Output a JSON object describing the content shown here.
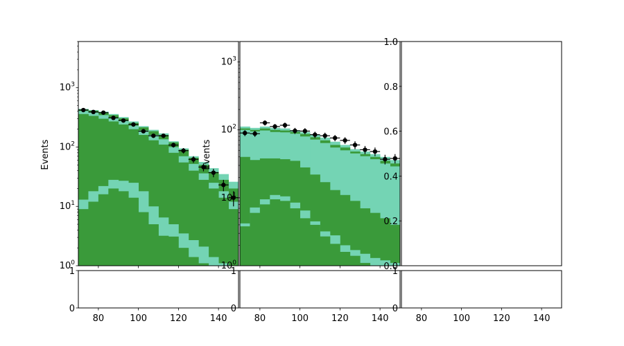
{
  "chart_data": [
    {
      "type": "bar",
      "panel": "left-top",
      "stacked_histogram": true,
      "yscale": "log",
      "xlim": [
        70,
        150
      ],
      "ylim": [
        1,
        6000
      ],
      "ylabel": "Events",
      "x_ticks": [
        "80",
        "100",
        "120",
        "140"
      ],
      "y_ticks": [
        {
          "base": "10",
          "exp": "0",
          "v": 1
        },
        {
          "base": "10",
          "exp": "1",
          "v": 10
        },
        {
          "base": "10",
          "exp": "2",
          "v": 100
        },
        {
          "base": "10",
          "exp": "3",
          "v": 1000
        }
      ],
      "bin_edges": [
        70,
        75,
        80,
        85,
        90,
        95,
        100,
        105,
        110,
        115,
        120,
        125,
        130,
        135,
        140,
        145,
        150
      ],
      "layers": [
        {
          "color": "#3a9a3a",
          "values": [
            9,
            12,
            16,
            20,
            18,
            14,
            8,
            5,
            3.2,
            3.1,
            2,
            1.4,
            1.1,
            1,
            1,
            1
          ]
        },
        {
          "color": "#74d4b4",
          "values": [
            13,
            18,
            22,
            28,
            27,
            25,
            18,
            10,
            6.5,
            5,
            3.5,
            2.7,
            2.1,
            1.4,
            1.1,
            1
          ]
        },
        {
          "color": "#3a9a3a",
          "values": [
            360,
            335,
            300,
            270,
            240,
            200,
            160,
            130,
            110,
            80,
            55,
            40,
            28,
            20,
            14,
            9
          ]
        },
        {
          "color": "#74d4b4",
          "values": [
            405,
            380,
            345,
            310,
            275,
            230,
            190,
            160,
            135,
            100,
            70,
            52,
            36,
            25,
            18,
            12
          ]
        },
        {
          "color": "#3a9a3a",
          "values": [
            430,
            410,
            380,
            345,
            305,
            255,
            215,
            185,
            160,
            120,
            90,
            66,
            50,
            38,
            28,
            20
          ]
        },
        {
          "color": "#74d4b4",
          "values": [
            440,
            420,
            395,
            360,
            320,
            270,
            225,
            195,
            170,
            125,
            95,
            70,
            56,
            44,
            35,
            26
          ]
        }
      ],
      "points": [
        {
          "x": 72.5,
          "y": 420,
          "err": 20
        },
        {
          "x": 77.5,
          "y": 390,
          "err": 20
        },
        {
          "x": 82.5,
          "y": 380,
          "err": 20
        },
        {
          "x": 87.5,
          "y": 310,
          "err": 18
        },
        {
          "x": 92.5,
          "y": 280,
          "err": 17
        },
        {
          "x": 97.5,
          "y": 240,
          "err": 15
        },
        {
          "x": 102.5,
          "y": 185,
          "err": 14
        },
        {
          "x": 107.5,
          "y": 155,
          "err": 12
        },
        {
          "x": 112.5,
          "y": 155,
          "err": 12
        },
        {
          "x": 117.5,
          "y": 108,
          "err": 10
        },
        {
          "x": 122.5,
          "y": 87,
          "err": 9
        },
        {
          "x": 127.5,
          "y": 62,
          "err": 8
        },
        {
          "x": 132.5,
          "y": 46,
          "err": 7
        },
        {
          "x": 137.5,
          "y": 37,
          "err": 6
        },
        {
          "x": 142.5,
          "y": 23,
          "err": 5
        },
        {
          "x": 147.5,
          "y": 14,
          "err": 4
        }
      ]
    },
    {
      "type": "bar",
      "panel": "middle-top",
      "stacked_histogram": true,
      "yscale": "log",
      "xlim": [
        70,
        150
      ],
      "ylim": [
        1,
        2000
      ],
      "ylabel": "Events",
      "x_ticks": [
        "80",
        "100",
        "120",
        "140"
      ],
      "y_ticks": [
        {
          "base": "10",
          "exp": "0",
          "v": 1
        },
        {
          "base": "10",
          "exp": "1",
          "v": 10
        },
        {
          "base": "10",
          "exp": "2",
          "v": 100
        },
        {
          "base": "10",
          "exp": "3",
          "v": 1000
        }
      ],
      "bin_edges": [
        70,
        75,
        80,
        85,
        90,
        95,
        100,
        105,
        110,
        115,
        120,
        125,
        130,
        135,
        140,
        145,
        150
      ],
      "layers": [
        {
          "color": "#3a9a3a",
          "values": [
            3.8,
            6,
            8,
            9.5,
            9,
            7,
            5,
            4,
            2.7,
            2.1,
            1.6,
            1.4,
            1.1,
            1,
            1,
            1
          ]
        },
        {
          "color": "#74d4b4",
          "values": [
            4.2,
            7.2,
            9.5,
            11,
            10.5,
            8.5,
            6.5,
            4.5,
            3.2,
            2.8,
            2,
            1.7,
            1.5,
            1.3,
            1.2,
            1.1
          ]
        },
        {
          "color": "#3a9a3a",
          "values": [
            40,
            36,
            38,
            38,
            37,
            35,
            28,
            22,
            17,
            13,
            11,
            9,
            7,
            6,
            5,
            4
          ]
        },
        {
          "color": "#74d4b4",
          "values": [
            100,
            95,
            98,
            93,
            92,
            88,
            80,
            72,
            64,
            55,
            50,
            45,
            41,
            37,
            32,
            29
          ]
        },
        {
          "color": "#3a9a3a",
          "values": [
            105,
            100,
            105,
            100,
            98,
            93,
            87,
            78,
            70,
            60,
            55,
            48,
            44,
            40,
            35,
            32
          ]
        },
        {
          "color": "#74d4b4",
          "values": [
            112,
            107,
            112,
            107,
            105,
            99,
            93,
            85,
            77,
            67,
            60,
            52,
            48,
            44,
            40,
            36
          ]
        }
      ],
      "points": [
        {
          "x": 72.5,
          "y": 90,
          "err": 9
        },
        {
          "x": 77.5,
          "y": 88,
          "err": 9
        },
        {
          "x": 82.5,
          "y": 127,
          "err": 11
        },
        {
          "x": 87.5,
          "y": 112,
          "err": 10
        },
        {
          "x": 92.5,
          "y": 117,
          "err": 11
        },
        {
          "x": 97.5,
          "y": 97,
          "err": 10
        },
        {
          "x": 102.5,
          "y": 96,
          "err": 10
        },
        {
          "x": 107.5,
          "y": 85,
          "err": 9
        },
        {
          "x": 112.5,
          "y": 82,
          "err": 9
        },
        {
          "x": 117.5,
          "y": 76,
          "err": 8
        },
        {
          "x": 122.5,
          "y": 70,
          "err": 8
        },
        {
          "x": 127.5,
          "y": 60,
          "err": 8
        },
        {
          "x": 132.5,
          "y": 51,
          "err": 7
        },
        {
          "x": 137.5,
          "y": 48,
          "err": 7
        },
        {
          "x": 142.5,
          "y": 37,
          "err": 6
        },
        {
          "x": 147.5,
          "y": 38,
          "err": 6
        }
      ]
    },
    {
      "type": "line",
      "panel": "right-top",
      "empty": true,
      "xlim": [
        0,
        1
      ],
      "ylim": [
        0,
        1
      ],
      "y_ticks": [
        "0.0",
        "0.2",
        "0.4",
        "0.6",
        "0.8",
        "1.0"
      ]
    },
    {
      "type": "line",
      "panel": "left-bottom",
      "empty": true,
      "xlim": [
        70,
        150
      ],
      "ylim": [
        0,
        1
      ],
      "x_ticks": [
        "80",
        "100",
        "120",
        "140"
      ],
      "y_ticks": [
        "0",
        "1"
      ]
    },
    {
      "type": "line",
      "panel": "middle-bottom",
      "empty": true,
      "xlim": [
        70,
        150
      ],
      "ylim": [
        0,
        1
      ],
      "x_ticks": [
        "80",
        "100",
        "120",
        "140"
      ],
      "y_ticks": [
        "0",
        "1"
      ]
    },
    {
      "type": "line",
      "panel": "right-bottom",
      "empty": true,
      "xlim": [
        70,
        150
      ],
      "ylim": [
        0,
        1
      ],
      "x_ticks": [
        "80",
        "100",
        "120",
        "140"
      ],
      "y_ticks": [
        "0",
        "1"
      ]
    }
  ]
}
